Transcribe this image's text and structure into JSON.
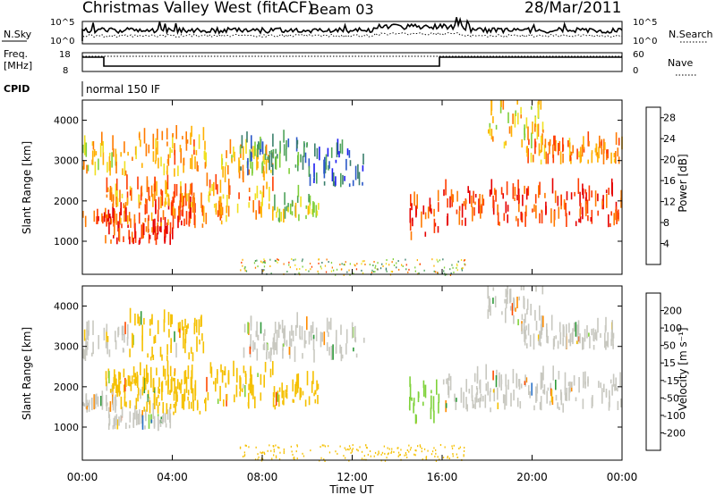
{
  "header": {
    "title": "Christmas Valley West (fitACF)",
    "beam": "Beam 03",
    "date": "28/Mar/2011"
  },
  "top_panels": {
    "nsky_label": "N.Sky",
    "nsearch_label": "N.Search",
    "freq_label_1": "Freq.",
    "freq_label_2": "[MHz]",
    "nave_label": "Nave",
    "cpid_label": "CPID",
    "cpid_text": "normal 150 IF",
    "noise_ticks_left": [
      "10^5",
      "10^0"
    ],
    "noise_ticks_right": [
      "10^5",
      "10^0"
    ],
    "freq_ticks_left": [
      "18",
      "8"
    ],
    "nave_ticks_right": [
      "60",
      "0"
    ]
  },
  "colorbars": {
    "power": {
      "label": "Power [dB]",
      "ticks": [
        "28",
        "24",
        "20",
        "16",
        "12",
        "8",
        "4"
      ],
      "colors": [
        "#1c1cf0",
        "#2a57c8",
        "#3a7f6c",
        "#4ea35a",
        "#7fcf3a",
        "#f0e020",
        "#ffb000",
        "#ff7a00",
        "#ff3c00",
        "#e60000"
      ]
    },
    "velocity": {
      "label": "Velocity [m s⁻¹]",
      "ticks": [
        "200",
        "100",
        "50",
        "15",
        "-15",
        "-50",
        "-100",
        "-200"
      ],
      "colors": [
        "#1c2cc8",
        "#2a72c8",
        "#2e9a3a",
        "#7fd23a",
        "#c8c8c0",
        "#f5c000",
        "#ff8c00",
        "#ff4a00",
        "#e60000"
      ]
    }
  },
  "axes": {
    "ylabel": "Slant Range [km]",
    "xlabel": "Time UT",
    "xticks": [
      "00:00",
      "04:00",
      "08:00",
      "12:00",
      "16:00",
      "20:00",
      "00:00"
    ],
    "yticks": [
      "4000",
      "3000",
      "2000",
      "1000"
    ]
  },
  "chart_data": [
    {
      "type": "heatmap",
      "name": "Power",
      "xlabel": "Time UT",
      "ylabel": "Slant Range [km]",
      "xlim_hours": [
        0,
        24
      ],
      "ylim_km": [
        180,
        4500
      ],
      "colorbar": {
        "label": "Power [dB]",
        "range": [
          0,
          30
        ]
      },
      "bands": [
        {
          "t": [
            0,
            1.5
          ],
          "r": [
            1350,
            1600
          ],
          "val": 26
        },
        {
          "t": [
            1.0,
            4.0
          ],
          "r": [
            900,
            1250
          ],
          "val": 26
        },
        {
          "t": [
            1.5,
            5.5
          ],
          "r": [
            1300,
            1900
          ],
          "val": 24
        },
        {
          "t": [
            1.0,
            5.0
          ],
          "r": [
            1800,
            2300
          ],
          "val": 22
        },
        {
          "t": [
            0,
            2.0
          ],
          "r": [
            2600,
            3400
          ],
          "val": 18
        },
        {
          "t": [
            2.0,
            5.5
          ],
          "r": [
            2600,
            3600
          ],
          "val": 20
        },
        {
          "t": [
            5.5,
            8.5
          ],
          "r": [
            1400,
            2400
          ],
          "val": 20
        },
        {
          "t": [
            6.0,
            8.5
          ],
          "r": [
            2400,
            3200
          ],
          "val": 18
        },
        {
          "t": [
            7.0,
            10.0
          ],
          "r": [
            2600,
            3500
          ],
          "val": 8
        },
        {
          "t": [
            10.0,
            12.5
          ],
          "r": [
            2300,
            3200
          ],
          "val": 6
        },
        {
          "t": [
            8.5,
            9.5
          ],
          "r": [
            1400,
            1900
          ],
          "val": 14
        },
        {
          "t": [
            9.5,
            10.5
          ],
          "r": [
            1500,
            2100
          ],
          "val": 14
        },
        {
          "t": [
            14.5,
            15.9
          ],
          "r": [
            1000,
            2000
          ],
          "val": 26
        },
        {
          "t": [
            16.0,
            24.0
          ],
          "r": [
            1350,
            2200
          ],
          "val": 26
        },
        {
          "t": [
            19.5,
            24.0
          ],
          "r": [
            2900,
            3400
          ],
          "val": 22
        },
        {
          "t": [
            18.0,
            20.5
          ],
          "r": [
            3300,
            4400
          ],
          "val": 18
        }
      ]
    },
    {
      "type": "heatmap",
      "name": "Velocity",
      "xlabel": "Time UT",
      "ylabel": "Slant Range [km]",
      "xlim_hours": [
        0,
        24
      ],
      "ylim_km": [
        180,
        4500
      ],
      "colorbar": {
        "label": "Velocity [m s⁻¹]",
        "range": [
          -250,
          250
        ]
      },
      "bands": [
        {
          "t": [
            0,
            1.5
          ],
          "r": [
            1350,
            1600
          ],
          "val": 0
        },
        {
          "t": [
            1.0,
            4.0
          ],
          "r": [
            900,
            1250
          ],
          "val": 0
        },
        {
          "t": [
            1.5,
            5.5
          ],
          "r": [
            1300,
            1900
          ],
          "val": -30
        },
        {
          "t": [
            1.0,
            5.0
          ],
          "r": [
            1800,
            2300
          ],
          "val": -40
        },
        {
          "t": [
            0,
            2.0
          ],
          "r": [
            2600,
            3400
          ],
          "val": 0
        },
        {
          "t": [
            2.0,
            5.5
          ],
          "r": [
            2600,
            3600
          ],
          "val": -40
        },
        {
          "t": [
            5.5,
            8.5
          ],
          "r": [
            1400,
            2400
          ],
          "val": -40
        },
        {
          "t": [
            8.5,
            9.5
          ],
          "r": [
            1400,
            1900
          ],
          "val": -40
        },
        {
          "t": [
            9.5,
            10.5
          ],
          "r": [
            1500,
            2100
          ],
          "val": -40
        },
        {
          "t": [
            7.0,
            12.5
          ],
          "r": [
            2600,
            3500
          ],
          "val": 0
        },
        {
          "t": [
            14.5,
            15.9
          ],
          "r": [
            1000,
            2000
          ],
          "val": 30
        },
        {
          "t": [
            16.0,
            24.0
          ],
          "r": [
            1350,
            2200
          ],
          "val": 0
        },
        {
          "t": [
            19.5,
            24.0
          ],
          "r": [
            2900,
            3400
          ],
          "val": 0
        },
        {
          "t": [
            18.0,
            20.5
          ],
          "r": [
            3300,
            4400
          ],
          "val": 0
        }
      ]
    }
  ]
}
